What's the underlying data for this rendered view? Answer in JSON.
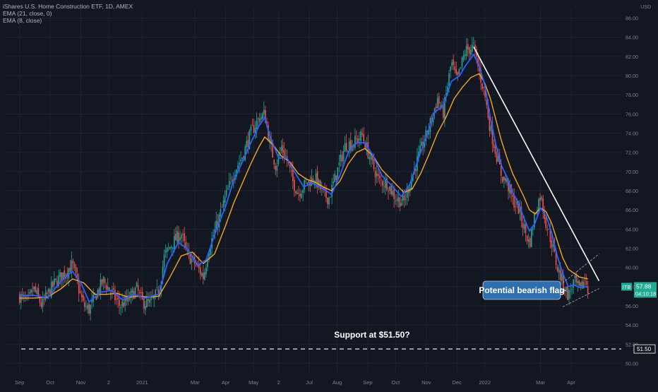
{
  "header": {
    "title": "iShares U.S. Home Construction ETF, 1D, AMEX",
    "indicators": [
      "EMA (21, close, 0)",
      "EMA (8, close)"
    ]
  },
  "colors": {
    "background": "#131722",
    "grid": "#1f2330",
    "up_candle": "#26a69a",
    "down_candle": "#ef5350",
    "ema21": "#f5a623",
    "ema8": "#2962ff",
    "trendline": "#ffffff",
    "axis_text": "#7d8192",
    "price_label": "#22ab94",
    "callout": "#2f6fb0"
  },
  "chart_data": {
    "type": "candlestick",
    "symbol": "ITB",
    "currency": "USD",
    "ylim": [
      49.0,
      87.0
    ],
    "y_ticks": [
      "50.00",
      "52.00",
      "54.00",
      "56.00",
      "58.00",
      "60.00",
      "62.00",
      "64.00",
      "66.00",
      "68.00",
      "70.00",
      "72.00",
      "74.00",
      "76.00",
      "78.00",
      "80.00",
      "82.00",
      "84.00",
      "86.00"
    ],
    "x_tick_labels": [
      "Sep",
      "Oct",
      "Nov",
      "2",
      "2021",
      "Mar",
      "Apr",
      "May",
      "2",
      "Jul",
      "Aug",
      "Sep",
      "Oct",
      "Nov",
      "Dec",
      "2022",
      "Mar",
      "Apr"
    ],
    "x_tick_positions": [
      0.0,
      1.1,
      2.2,
      3.2,
      4.4,
      6.3,
      7.4,
      8.4,
      9.3,
      10.4,
      11.4,
      12.5,
      13.5,
      14.6,
      15.7,
      16.7,
      18.7,
      19.8
    ],
    "x_range": [
      -0.5,
      21.6
    ],
    "close_path": [
      [
        0.0,
        57.0
      ],
      [
        0.3,
        56.4
      ],
      [
        0.5,
        57.8
      ],
      [
        0.8,
        56.0
      ],
      [
        1.0,
        57.2
      ],
      [
        1.3,
        58.5
      ],
      [
        1.6,
        59.4
      ],
      [
        1.9,
        60.3
      ],
      [
        2.1,
        58.0
      ],
      [
        2.3,
        56.0
      ],
      [
        2.5,
        55.6
      ],
      [
        2.8,
        57.5
      ],
      [
        3.0,
        58.6
      ],
      [
        3.3,
        57.4
      ],
      [
        3.6,
        56.0
      ],
      [
        3.9,
        56.6
      ],
      [
        4.2,
        57.8
      ],
      [
        4.4,
        56.4
      ],
      [
        4.7,
        56.2
      ],
      [
        5.0,
        57.6
      ],
      [
        5.2,
        61.2
      ],
      [
        5.5,
        62.6
      ],
      [
        5.8,
        63.6
      ],
      [
        6.0,
        61.4
      ],
      [
        6.3,
        60.4
      ],
      [
        6.6,
        59.0
      ],
      [
        6.8,
        62.0
      ],
      [
        7.1,
        64.6
      ],
      [
        7.4,
        67.4
      ],
      [
        7.7,
        70.0
      ],
      [
        8.0,
        71.6
      ],
      [
        8.3,
        74.0
      ],
      [
        8.6,
        75.6
      ],
      [
        8.8,
        76.0
      ],
      [
        9.0,
        72.6
      ],
      [
        9.2,
        70.6
      ],
      [
        9.4,
        72.5
      ],
      [
        9.6,
        71.2
      ],
      [
        9.8,
        69.0
      ],
      [
        10.0,
        67.8
      ],
      [
        10.3,
        68.8
      ],
      [
        10.6,
        69.4
      ],
      [
        10.9,
        67.6
      ],
      [
        11.1,
        67.2
      ],
      [
        11.4,
        70.0
      ],
      [
        11.7,
        72.8
      ],
      [
        12.0,
        73.0
      ],
      [
        12.3,
        73.8
      ],
      [
        12.6,
        71.2
      ],
      [
        12.9,
        69.0
      ],
      [
        13.2,
        68.8
      ],
      [
        13.5,
        67.2
      ],
      [
        13.8,
        66.8
      ],
      [
        14.1,
        69.6
      ],
      [
        14.4,
        72.2
      ],
      [
        14.7,
        74.6
      ],
      [
        15.0,
        77.6
      ],
      [
        15.2,
        76.0
      ],
      [
        15.5,
        81.4
      ],
      [
        15.7,
        79.4
      ],
      [
        16.0,
        82.6
      ],
      [
        16.3,
        83.0
      ],
      [
        16.5,
        80.4
      ],
      [
        16.7,
        78.0
      ],
      [
        16.9,
        74.4
      ],
      [
        17.1,
        72.0
      ],
      [
        17.3,
        69.6
      ],
      [
        17.5,
        68.8
      ],
      [
        17.7,
        67.0
      ],
      [
        17.9,
        66.2
      ],
      [
        18.1,
        64.2
      ],
      [
        18.3,
        62.4
      ],
      [
        18.5,
        65.6
      ],
      [
        18.7,
        67.6
      ],
      [
        18.9,
        64.6
      ],
      [
        19.1,
        62.6
      ],
      [
        19.3,
        60.0
      ],
      [
        19.5,
        58.4
      ],
      [
        19.7,
        57.0
      ],
      [
        19.9,
        58.6
      ],
      [
        20.1,
        57.6
      ],
      [
        20.3,
        58.8
      ],
      [
        20.4,
        57.88
      ]
    ],
    "ema8_path": [
      [
        0.0,
        57.0
      ],
      [
        0.5,
        57.1
      ],
      [
        1.0,
        56.8
      ],
      [
        1.5,
        58.6
      ],
      [
        1.9,
        59.6
      ],
      [
        2.2,
        58.4
      ],
      [
        2.5,
        56.4
      ],
      [
        2.9,
        57.4
      ],
      [
        3.3,
        57.6
      ],
      [
        3.7,
        56.6
      ],
      [
        4.1,
        57.2
      ],
      [
        4.5,
        56.8
      ],
      [
        5.0,
        57.2
      ],
      [
        5.3,
        60.4
      ],
      [
        5.7,
        62.6
      ],
      [
        6.0,
        62.0
      ],
      [
        6.4,
        60.2
      ],
      [
        6.7,
        60.8
      ],
      [
        7.0,
        63.4
      ],
      [
        7.4,
        66.4
      ],
      [
        7.7,
        69.2
      ],
      [
        8.0,
        71.0
      ],
      [
        8.3,
        73.0
      ],
      [
        8.6,
        74.8
      ],
      [
        8.8,
        75.6
      ],
      [
        9.0,
        73.6
      ],
      [
        9.3,
        71.4
      ],
      [
        9.6,
        71.4
      ],
      [
        9.9,
        69.8
      ],
      [
        10.2,
        68.4
      ],
      [
        10.5,
        68.8
      ],
      [
        10.9,
        68.2
      ],
      [
        11.2,
        67.6
      ],
      [
        11.5,
        69.6
      ],
      [
        11.8,
        72.0
      ],
      [
        12.1,
        73.0
      ],
      [
        12.4,
        73.0
      ],
      [
        12.7,
        71.6
      ],
      [
        13.0,
        69.6
      ],
      [
        13.4,
        68.4
      ],
      [
        13.7,
        67.4
      ],
      [
        14.0,
        68.6
      ],
      [
        14.3,
        71.2
      ],
      [
        14.6,
        73.6
      ],
      [
        14.9,
        76.2
      ],
      [
        15.2,
        76.8
      ],
      [
        15.5,
        79.4
      ],
      [
        15.8,
        80.0
      ],
      [
        16.0,
        81.0
      ],
      [
        16.3,
        82.2
      ],
      [
        16.5,
        81.0
      ],
      [
        16.7,
        79.0
      ],
      [
        16.9,
        75.6
      ],
      [
        17.1,
        72.8
      ],
      [
        17.3,
        70.6
      ],
      [
        17.5,
        69.4
      ],
      [
        17.7,
        67.8
      ],
      [
        17.9,
        66.8
      ],
      [
        18.1,
        65.2
      ],
      [
        18.3,
        63.8
      ],
      [
        18.5,
        64.6
      ],
      [
        18.7,
        66.2
      ],
      [
        18.9,
        65.4
      ],
      [
        19.1,
        63.6
      ],
      [
        19.3,
        61.2
      ],
      [
        19.5,
        59.4
      ],
      [
        19.7,
        58.0
      ],
      [
        19.9,
        58.2
      ],
      [
        20.1,
        57.9
      ],
      [
        20.4,
        58.0
      ]
    ],
    "ema21_path": [
      [
        0.0,
        56.8
      ],
      [
        0.5,
        56.8
      ],
      [
        1.0,
        56.9
      ],
      [
        1.5,
        57.8
      ],
      [
        1.9,
        58.8
      ],
      [
        2.3,
        58.4
      ],
      [
        2.7,
        57.2
      ],
      [
        3.1,
        57.2
      ],
      [
        3.5,
        57.3
      ],
      [
        3.9,
        56.9
      ],
      [
        4.3,
        57.0
      ],
      [
        4.7,
        56.9
      ],
      [
        5.0,
        57.0
      ],
      [
        5.4,
        59.0
      ],
      [
        5.8,
        61.2
      ],
      [
        6.2,
        61.6
      ],
      [
        6.6,
        60.4
      ],
      [
        7.0,
        61.4
      ],
      [
        7.4,
        64.4
      ],
      [
        7.7,
        66.8
      ],
      [
        8.0,
        68.8
      ],
      [
        8.3,
        70.8
      ],
      [
        8.6,
        72.6
      ],
      [
        8.8,
        73.6
      ],
      [
        9.1,
        72.8
      ],
      [
        9.4,
        71.6
      ],
      [
        9.7,
        71.0
      ],
      [
        10.0,
        69.8
      ],
      [
        10.3,
        69.2
      ],
      [
        10.6,
        68.9
      ],
      [
        10.9,
        68.4
      ],
      [
        11.2,
        68.0
      ],
      [
        11.5,
        69.0
      ],
      [
        11.8,
        70.8
      ],
      [
        12.1,
        72.0
      ],
      [
        12.4,
        72.4
      ],
      [
        12.7,
        71.6
      ],
      [
        13.0,
        70.2
      ],
      [
        13.4,
        69.0
      ],
      [
        13.8,
        67.8
      ],
      [
        14.1,
        68.2
      ],
      [
        14.4,
        69.8
      ],
      [
        14.7,
        71.8
      ],
      [
        15.0,
        74.0
      ],
      [
        15.3,
        75.6
      ],
      [
        15.6,
        77.6
      ],
      [
        15.9,
        78.8
      ],
      [
        16.2,
        79.8
      ],
      [
        16.5,
        80.2
      ],
      [
        16.7,
        79.2
      ],
      [
        16.9,
        77.6
      ],
      [
        17.1,
        75.4
      ],
      [
        17.3,
        73.2
      ],
      [
        17.5,
        71.4
      ],
      [
        17.7,
        69.8
      ],
      [
        17.9,
        68.6
      ],
      [
        18.1,
        67.4
      ],
      [
        18.3,
        66.0
      ],
      [
        18.5,
        65.6
      ],
      [
        18.7,
        66.2
      ],
      [
        18.9,
        65.8
      ],
      [
        19.1,
        64.6
      ],
      [
        19.3,
        62.8
      ],
      [
        19.5,
        61.0
      ],
      [
        19.7,
        59.8
      ],
      [
        19.9,
        59.4
      ],
      [
        20.1,
        59.0
      ],
      [
        20.4,
        58.8
      ]
    ],
    "last_price": "57.88",
    "countdown": "04:10:18",
    "support_level": 51.5,
    "support_label": "51.50",
    "trendline": [
      [
        16.3,
        83.0
      ],
      [
        20.8,
        58.6
      ]
    ],
    "flag_upper": [
      [
        19.5,
        58.4
      ],
      [
        20.8,
        61.4
      ]
    ],
    "flag_lower": [
      [
        19.5,
        55.9
      ],
      [
        20.8,
        57.8
      ]
    ],
    "annotations": {
      "support_text": "Support at $51.50?",
      "flag_text": "Potential bearish flag"
    }
  }
}
